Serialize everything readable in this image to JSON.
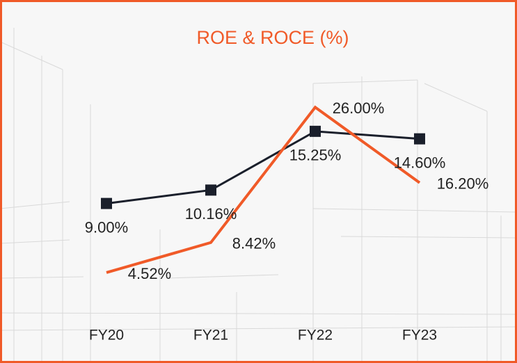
{
  "chart_data": {
    "type": "line",
    "title": "ROE & ROCE (%)",
    "categories": [
      "FY20",
      "FY21",
      "FY22",
      "FY23"
    ],
    "series": [
      {
        "color": "#1a1f2b",
        "marker": "square",
        "values": [
          9.0,
          10.16,
          15.25,
          14.6
        ],
        "value_labels": [
          "9.00%",
          "10.16%",
          "15.25%",
          "14.60%"
        ]
      },
      {
        "color": "#f05a28",
        "axis": "y2",
        "values": [
          4.52,
          8.42,
          26.0,
          16.2
        ],
        "value_labels": [
          "4.52%",
          "8.42%",
          "26.00%",
          "16.20%"
        ]
      }
    ],
    "ylim": [
      0,
      20
    ],
    "y2lim": [
      0,
      30
    ]
  }
}
